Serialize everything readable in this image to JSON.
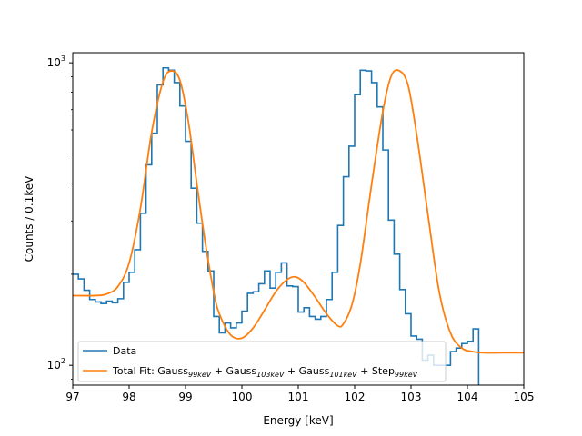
{
  "chart_data": {
    "type": "line",
    "title": "",
    "xlabel": "Energy [keV]",
    "ylabel": "Counts / 0.1keV",
    "xlim": [
      97,
      105
    ],
    "ylim": [
      86,
      1080
    ],
    "yscale": "log",
    "grid": false,
    "legend_position": "lower-center",
    "x_ticks": [
      97,
      98,
      99,
      100,
      101,
      102,
      103,
      104,
      105
    ],
    "x_tick_labels": [
      "97",
      "98",
      "99",
      "100",
      "101",
      "102",
      "103",
      "104",
      "105"
    ],
    "y_ticks": [
      100,
      1000
    ],
    "y_tick_base": "10",
    "y_tick_exponents": [
      "2",
      "3"
    ],
    "colors": {
      "data": "#1f77b4",
      "fit": "#ff7f0e"
    },
    "data_series": {
      "name": "Data",
      "style": "steps",
      "bin_width": 0.1,
      "bin_start": 97.0,
      "counts": [
        200,
        193,
        177,
        165,
        162,
        160,
        163,
        161,
        166,
        188,
        203,
        241,
        318,
        460,
        585,
        845,
        962,
        945,
        860,
        720,
        550,
        385,
        295,
        238,
        205,
        145,
        128,
        138,
        133,
        138,
        151,
        173,
        175,
        186,
        205,
        180,
        203,
        218,
        183,
        182,
        150,
        155,
        145,
        142,
        145,
        165,
        203,
        290,
        420,
        530,
        785,
        945,
        940,
        860,
        715,
        515,
        302,
        233,
        178,
        148,
        125,
        122,
        104,
        108,
        100,
        100,
        100,
        111,
        114,
        118,
        120,
        132
      ]
    },
    "fit_series": {
      "name": "Total Fit:",
      "components": [
        {
          "base": "Gauss",
          "sub": "99keV"
        },
        {
          "base": "Gauss",
          "sub": "103keV"
        },
        {
          "base": "Gauss",
          "sub": "101keV"
        },
        {
          "base": "Step",
          "sub": "99keV"
        }
      ],
      "x": [
        97.0,
        97.4,
        97.6,
        97.8,
        98.0,
        98.2,
        98.4,
        98.6,
        98.75,
        98.9,
        99.05,
        99.2,
        99.35,
        99.5,
        99.6,
        99.8,
        100.0,
        100.2,
        100.4,
        100.6,
        100.8,
        100.95,
        101.1,
        101.3,
        101.5,
        101.7,
        101.8,
        101.95,
        102.1,
        102.3,
        102.5,
        102.65,
        102.8,
        102.95,
        103.1,
        103.3,
        103.5,
        103.7,
        103.9,
        104.1,
        104.3,
        104.6,
        105.0
      ],
      "y": [
        170,
        170,
        172,
        182,
        218,
        330,
        590,
        865,
        940,
        875,
        640,
        400,
        255,
        175,
        148,
        126,
        123,
        133,
        152,
        175,
        192,
        196,
        188,
        168,
        148,
        135,
        137,
        158,
        216,
        395,
        690,
        905,
        940,
        840,
        580,
        315,
        175,
        128,
        114,
        111,
        110,
        110,
        110
      ]
    }
  }
}
